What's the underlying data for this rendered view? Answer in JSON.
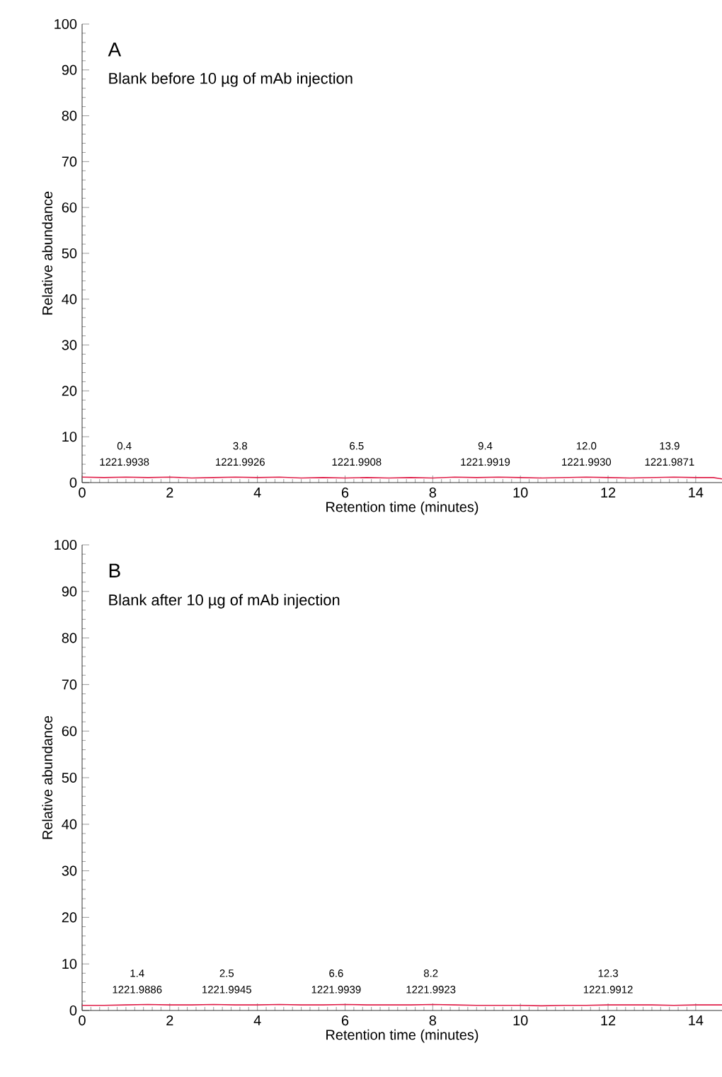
{
  "chart_data": [
    {
      "type": "line",
      "title": "A",
      "subtitle": "Blank before 10 µg of mAb injection",
      "xlabel": "Retention time (minutes)",
      "ylabel": "Relative abundance",
      "xlim": [
        0,
        14.6
      ],
      "ylim": [
        0,
        100
      ],
      "xticks": [
        0,
        2,
        4,
        6,
        8,
        10,
        12,
        14
      ],
      "yticks": [
        0,
        10,
        20,
        30,
        40,
        50,
        60,
        70,
        80,
        90,
        100
      ],
      "series": [
        {
          "color": "#e0204a",
          "x": [
            0,
            0.5,
            1,
            1.5,
            2,
            2.5,
            3,
            3.5,
            4,
            4.5,
            5,
            5.5,
            6,
            6.5,
            7,
            7.5,
            8,
            8.5,
            9,
            9.5,
            10,
            10.5,
            11,
            11.5,
            12,
            12.5,
            13,
            13.5,
            14,
            14.4,
            14.6
          ],
          "values": [
            1.2,
            1.1,
            1.2,
            1.1,
            1.2,
            1.0,
            1.1,
            1.2,
            1.1,
            1.2,
            1.0,
            1.1,
            1.0,
            1.1,
            1.0,
            1.1,
            1.0,
            1.2,
            1.1,
            1.2,
            1.1,
            1.0,
            1.1,
            1.2,
            1.1,
            1.0,
            1.1,
            1.2,
            1.1,
            1.1,
            0.8
          ]
        }
      ],
      "annotations": [
        "0.4",
        "1221.9938",
        "3.8",
        "1221.9926",
        "6.5",
        "1221.9908",
        "9.4",
        "1221.9919",
        "12.0",
        "1221.9930",
        "13.9",
        "1221.9871"
      ]
    },
    {
      "type": "line",
      "title": "B",
      "subtitle": "Blank after 10 µg of mAb injection",
      "xlabel": "Retention time (minutes)",
      "ylabel": "Relative abundance",
      "xlim": [
        0,
        14.6
      ],
      "ylim": [
        0,
        100
      ],
      "xticks": [
        0,
        2,
        4,
        6,
        8,
        10,
        12,
        14
      ],
      "yticks": [
        0,
        10,
        20,
        30,
        40,
        50,
        60,
        70,
        80,
        90,
        100
      ],
      "series": [
        {
          "color": "#e0204a",
          "x": [
            0,
            0.5,
            1,
            1.5,
            2,
            2.5,
            3,
            3.5,
            4,
            4.5,
            5,
            5.5,
            6,
            6.5,
            7,
            7.5,
            8,
            8.5,
            9,
            9.5,
            10,
            10.5,
            11,
            11.5,
            12,
            12.5,
            13,
            13.5,
            14,
            14.6
          ],
          "values": [
            1.1,
            1.1,
            1.2,
            1.3,
            1.2,
            1.2,
            1.3,
            1.2,
            1.2,
            1.3,
            1.2,
            1.2,
            1.3,
            1.2,
            1.2,
            1.2,
            1.3,
            1.2,
            1.1,
            1.1,
            1.1,
            1.0,
            1.1,
            1.1,
            1.2,
            1.2,
            1.2,
            1.1,
            1.2,
            1.2
          ]
        }
      ],
      "annotations": [
        "1.4",
        "1221.9886",
        "2.5",
        "1221.9945",
        "6.6",
        "1221.9939",
        "8.2",
        "1221.9923",
        "12.3",
        "1221.9912"
      ]
    }
  ]
}
